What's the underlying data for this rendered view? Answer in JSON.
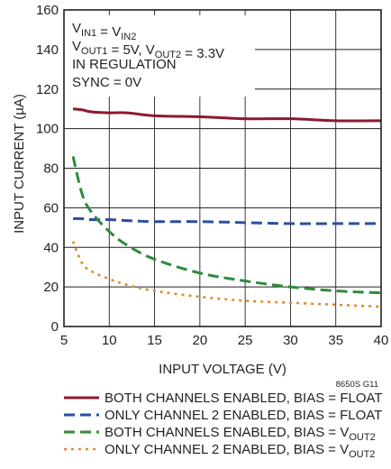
{
  "chart_data": {
    "type": "line",
    "xlabel": "INPUT VOLTAGE (V)",
    "ylabel": "INPUT CURRENT (µA)",
    "xlim": [
      5,
      40
    ],
    "ylim": [
      0,
      160
    ],
    "x_ticks": [
      "5",
      "10",
      "15",
      "20",
      "25",
      "30",
      "35",
      "40"
    ],
    "y_ticks": [
      "0",
      "20",
      "40",
      "60",
      "80",
      "100",
      "120",
      "140",
      "160"
    ],
    "grid": true,
    "conditions": [
      {
        "main": "V",
        "sub": "IN1",
        "mid": " = V",
        "sub2": "IN2",
        "tail": ""
      },
      {
        "main": "V",
        "sub": "OUT1",
        "mid": " = 5V, V",
        "sub2": "OUT2",
        "tail": " = 3.3V"
      },
      {
        "main": "IN REGULATION",
        "sub": "",
        "mid": "",
        "sub2": "",
        "tail": ""
      },
      {
        "main": "SYNC = 0V",
        "sub": "",
        "mid": "",
        "sub2": "",
        "tail": ""
      }
    ],
    "code_label": "8650S G11",
    "legend_position": "bottom",
    "series": [
      {
        "name": "BOTH CHANNELS ENABLED, BIAS = FLOAT",
        "color": "#8b1a2f",
        "style": "solid",
        "x": [
          6,
          7,
          8,
          10,
          12,
          15,
          20,
          25,
          30,
          35,
          40
        ],
        "y": [
          110,
          109.5,
          108.5,
          108,
          108,
          106.5,
          106,
          105,
          105,
          104,
          104
        ]
      },
      {
        "name": "ONLY CHANNEL 2 ENABLED, BIAS = FLOAT",
        "color": "#2b4ea2",
        "style": "dash",
        "x": [
          6,
          7,
          8,
          10,
          12,
          15,
          20,
          25,
          30,
          35,
          40
        ],
        "y": [
          54.5,
          54.5,
          54,
          54,
          53.5,
          53,
          53,
          52.5,
          52,
          52,
          52
        ]
      },
      {
        "name": "BOTH CHANNELS ENABLED, BIAS = V",
        "name_sub": "OUT2",
        "color": "#2e8b3d",
        "style": "dash",
        "x": [
          6,
          7,
          8,
          10,
          12,
          15,
          20,
          25,
          30,
          35,
          40
        ],
        "y": [
          86,
          67,
          58,
          48,
          41,
          34,
          27,
          23,
          20,
          18,
          17
        ]
      },
      {
        "name": "ONLY CHANNEL 2 ENABLED, BIAS = V",
        "name_sub": "OUT2",
        "color": "#e08a2c",
        "style": "dot",
        "x": [
          6,
          7,
          8,
          10,
          12,
          15,
          20,
          25,
          30,
          35,
          40
        ],
        "y": [
          43,
          32,
          28,
          24,
          21,
          18,
          15,
          13,
          12,
          11,
          10
        ]
      }
    ]
  }
}
